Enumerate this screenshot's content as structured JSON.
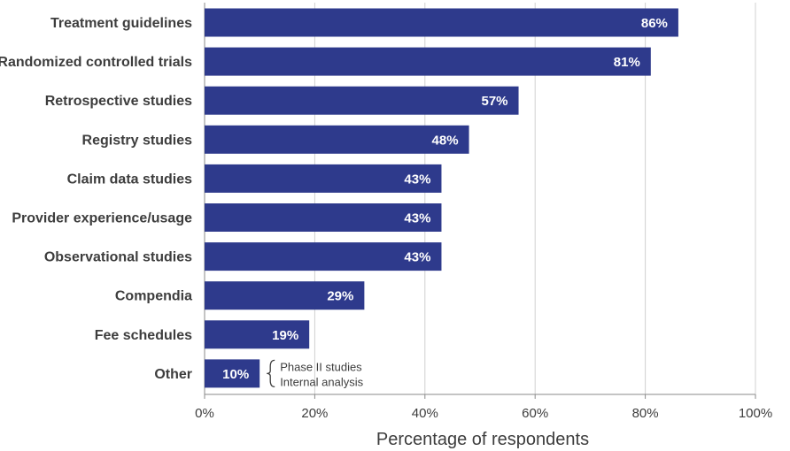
{
  "chart_data": {
    "type": "bar",
    "orientation": "horizontal",
    "categories": [
      "Treatment guidelines",
      "Randomized controlled trials",
      "Retrospective studies",
      "Registry studies",
      "Claim data studies",
      "Provider experience/usage",
      "Observational studies",
      "Compendia",
      "Fee schedules",
      "Other"
    ],
    "values": [
      86,
      81,
      57,
      48,
      43,
      43,
      43,
      29,
      19,
      10
    ],
    "value_labels": [
      "86%",
      "81%",
      "57%",
      "48%",
      "43%",
      "43%",
      "43%",
      "29%",
      "19%",
      "10%"
    ],
    "title": "",
    "xlabel": "Percentage of respondents",
    "ylabel": "",
    "xlim": [
      0,
      100
    ],
    "xticks": [
      0,
      20,
      40,
      60,
      80,
      100
    ],
    "xtick_labels": [
      "0%",
      "20%",
      "40%",
      "60%",
      "80%",
      "100%"
    ],
    "grid": true,
    "annotations": [
      {
        "category": "Other",
        "lines": [
          "Phase II studies",
          "Internal analysis"
        ]
      }
    ],
    "colors": {
      "bar": "#2e3a8c",
      "grid": "#d0d0d0",
      "axis": "#8a8a8a"
    }
  }
}
